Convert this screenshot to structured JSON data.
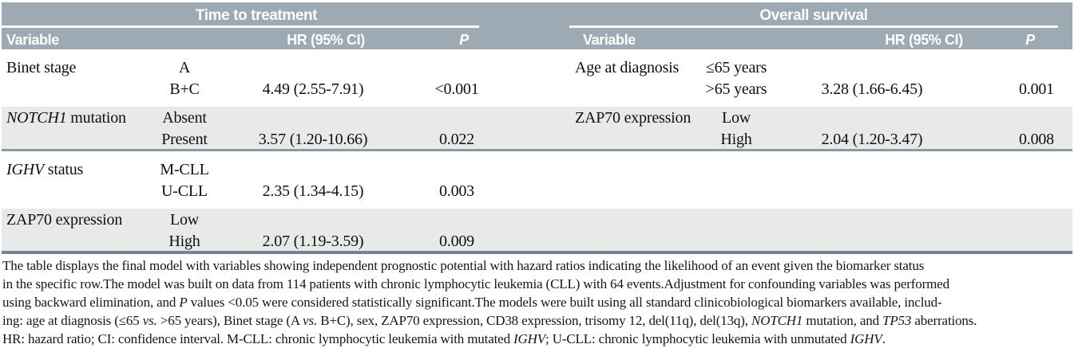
{
  "colors": {
    "header_bg": "#9DAAB3",
    "stripe_row": "#E8EAEA",
    "thin_rule": "#8B99A3",
    "bottom_rule": "#76838E",
    "header_text": "#FFFFFF",
    "body_text": "#101010"
  },
  "tables": [
    {
      "title": "Time to treatment",
      "columns": {
        "variable": "Variable",
        "hr": "HR (95% CI)",
        "p": "P"
      },
      "rows": [
        {
          "variable_italic": "",
          "variable": "Binet stage",
          "levels": [
            "A",
            "B+C"
          ],
          "hr": "4.49 (2.55-7.91)",
          "p": "<0.001"
        },
        {
          "variable_italic": "NOTCH1",
          "variable": " mutation",
          "levels": [
            "Absent",
            "Present"
          ],
          "hr": "3.57 (1.20-10.66)",
          "p": "0.022"
        },
        {
          "variable_italic": "IGHV",
          "variable": " status",
          "levels": [
            "M-CLL",
            "U-CLL"
          ],
          "hr": "2.35 (1.34-4.15)",
          "p": "0.003"
        },
        {
          "variable_italic": "",
          "variable": "ZAP70 expression",
          "levels": [
            "Low",
            "High"
          ],
          "hr": "2.07 (1.19-3.59)",
          "p": "0.009"
        }
      ]
    },
    {
      "title": "Overall survival",
      "columns": {
        "variable": "Variable",
        "hr": "HR (95% CI)",
        "p": "P"
      },
      "rows": [
        {
          "variable_italic": "",
          "variable": "Age at diagnosis",
          "levels": [
            "≤65 years",
            ">65 years"
          ],
          "hr": "3.28 (1.66-6.45)",
          "p": "0.001"
        },
        {
          "variable_italic": "",
          "variable": "ZAP70 expression",
          "levels": [
            "Low",
            "High"
          ],
          "hr": "2.04 (1.20-3.47)",
          "p": "0.008"
        }
      ]
    }
  ],
  "footnote_lines": [
    [
      {
        "t": "The table displays the final model with variables showing independent prognostic potential with hazard ratios indicating the likelihood of an event given the biomarker status"
      }
    ],
    [
      {
        "t": "in the specific row.The model was built on data from 114 patients with chronic lymphocytic leukemia (CLL) with 64 events.Adjustment for confounding variables was performed"
      }
    ],
    [
      {
        "t": "using backward elimination, and "
      },
      {
        "t": "P",
        "i": true
      },
      {
        "t": " values <0.05 were considered statistically significant.The models were built using all standard clinicobiological biomarkers available, includ-"
      }
    ],
    [
      {
        "t": "ing: age at diagnosis (≤65 "
      },
      {
        "t": "vs.",
        "i": true
      },
      {
        "t": " >65 years), Binet stage (A "
      },
      {
        "t": "vs.",
        "i": true
      },
      {
        "t": " B+C), sex, ZAP70 expression, CD38 expression, trisomy 12, del(11q), del(13q), "
      },
      {
        "t": "NOTCH1",
        "i": true
      },
      {
        "t": " mutation, and "
      },
      {
        "t": "TP53",
        "i": true
      },
      {
        "t": " aberrations."
      }
    ],
    [
      {
        "t": "HR: hazard ratio; CI: confidence interval. M-CLL: chronic lymphocytic leukemia with mutated "
      },
      {
        "t": "IGHV",
        "i": true
      },
      {
        "t": "; U-CLL: chronic lymphocytic leukemia with unmutated "
      },
      {
        "t": "IGHV",
        "i": true
      },
      {
        "t": "."
      }
    ]
  ]
}
